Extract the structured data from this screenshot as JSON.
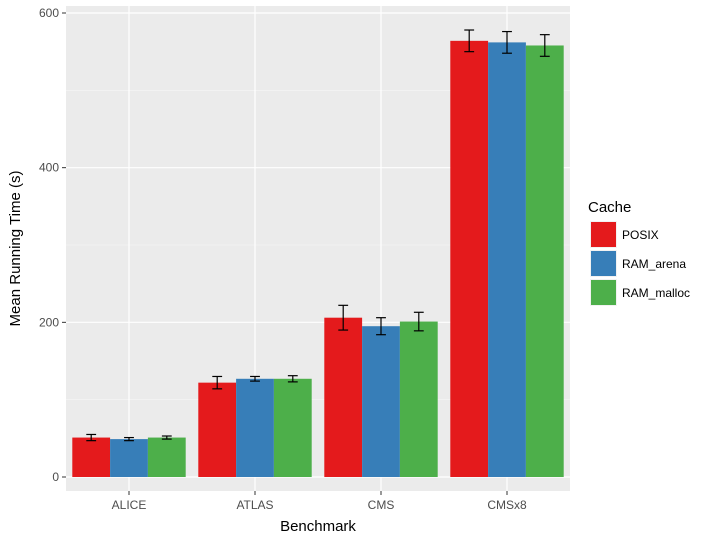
{
  "chart_data": {
    "type": "bar",
    "xlabel": "Benchmark",
    "ylabel": "Mean Running Time (s)",
    "ylim": [
      0,
      600
    ],
    "yticks": [
      0,
      200,
      400,
      600
    ],
    "categories": [
      "ALICE",
      "ATLAS",
      "CMS",
      "CMSx8"
    ],
    "legend_title": "Cache",
    "legend_position": "right",
    "grid": true,
    "series": [
      {
        "name": "POSIX",
        "color": "#e41a1c",
        "values": [
          51,
          122,
          206,
          564
        ],
        "error": [
          4,
          8,
          16,
          14
        ]
      },
      {
        "name": "RAM_arena",
        "color": "#377eb8",
        "values": [
          49,
          127,
          195,
          562
        ],
        "error": [
          2,
          3,
          11,
          14
        ]
      },
      {
        "name": "RAM_malloc",
        "color": "#4daf4a",
        "values": [
          51,
          127,
          201,
          558
        ],
        "error": [
          2,
          4,
          12,
          14
        ]
      }
    ]
  }
}
